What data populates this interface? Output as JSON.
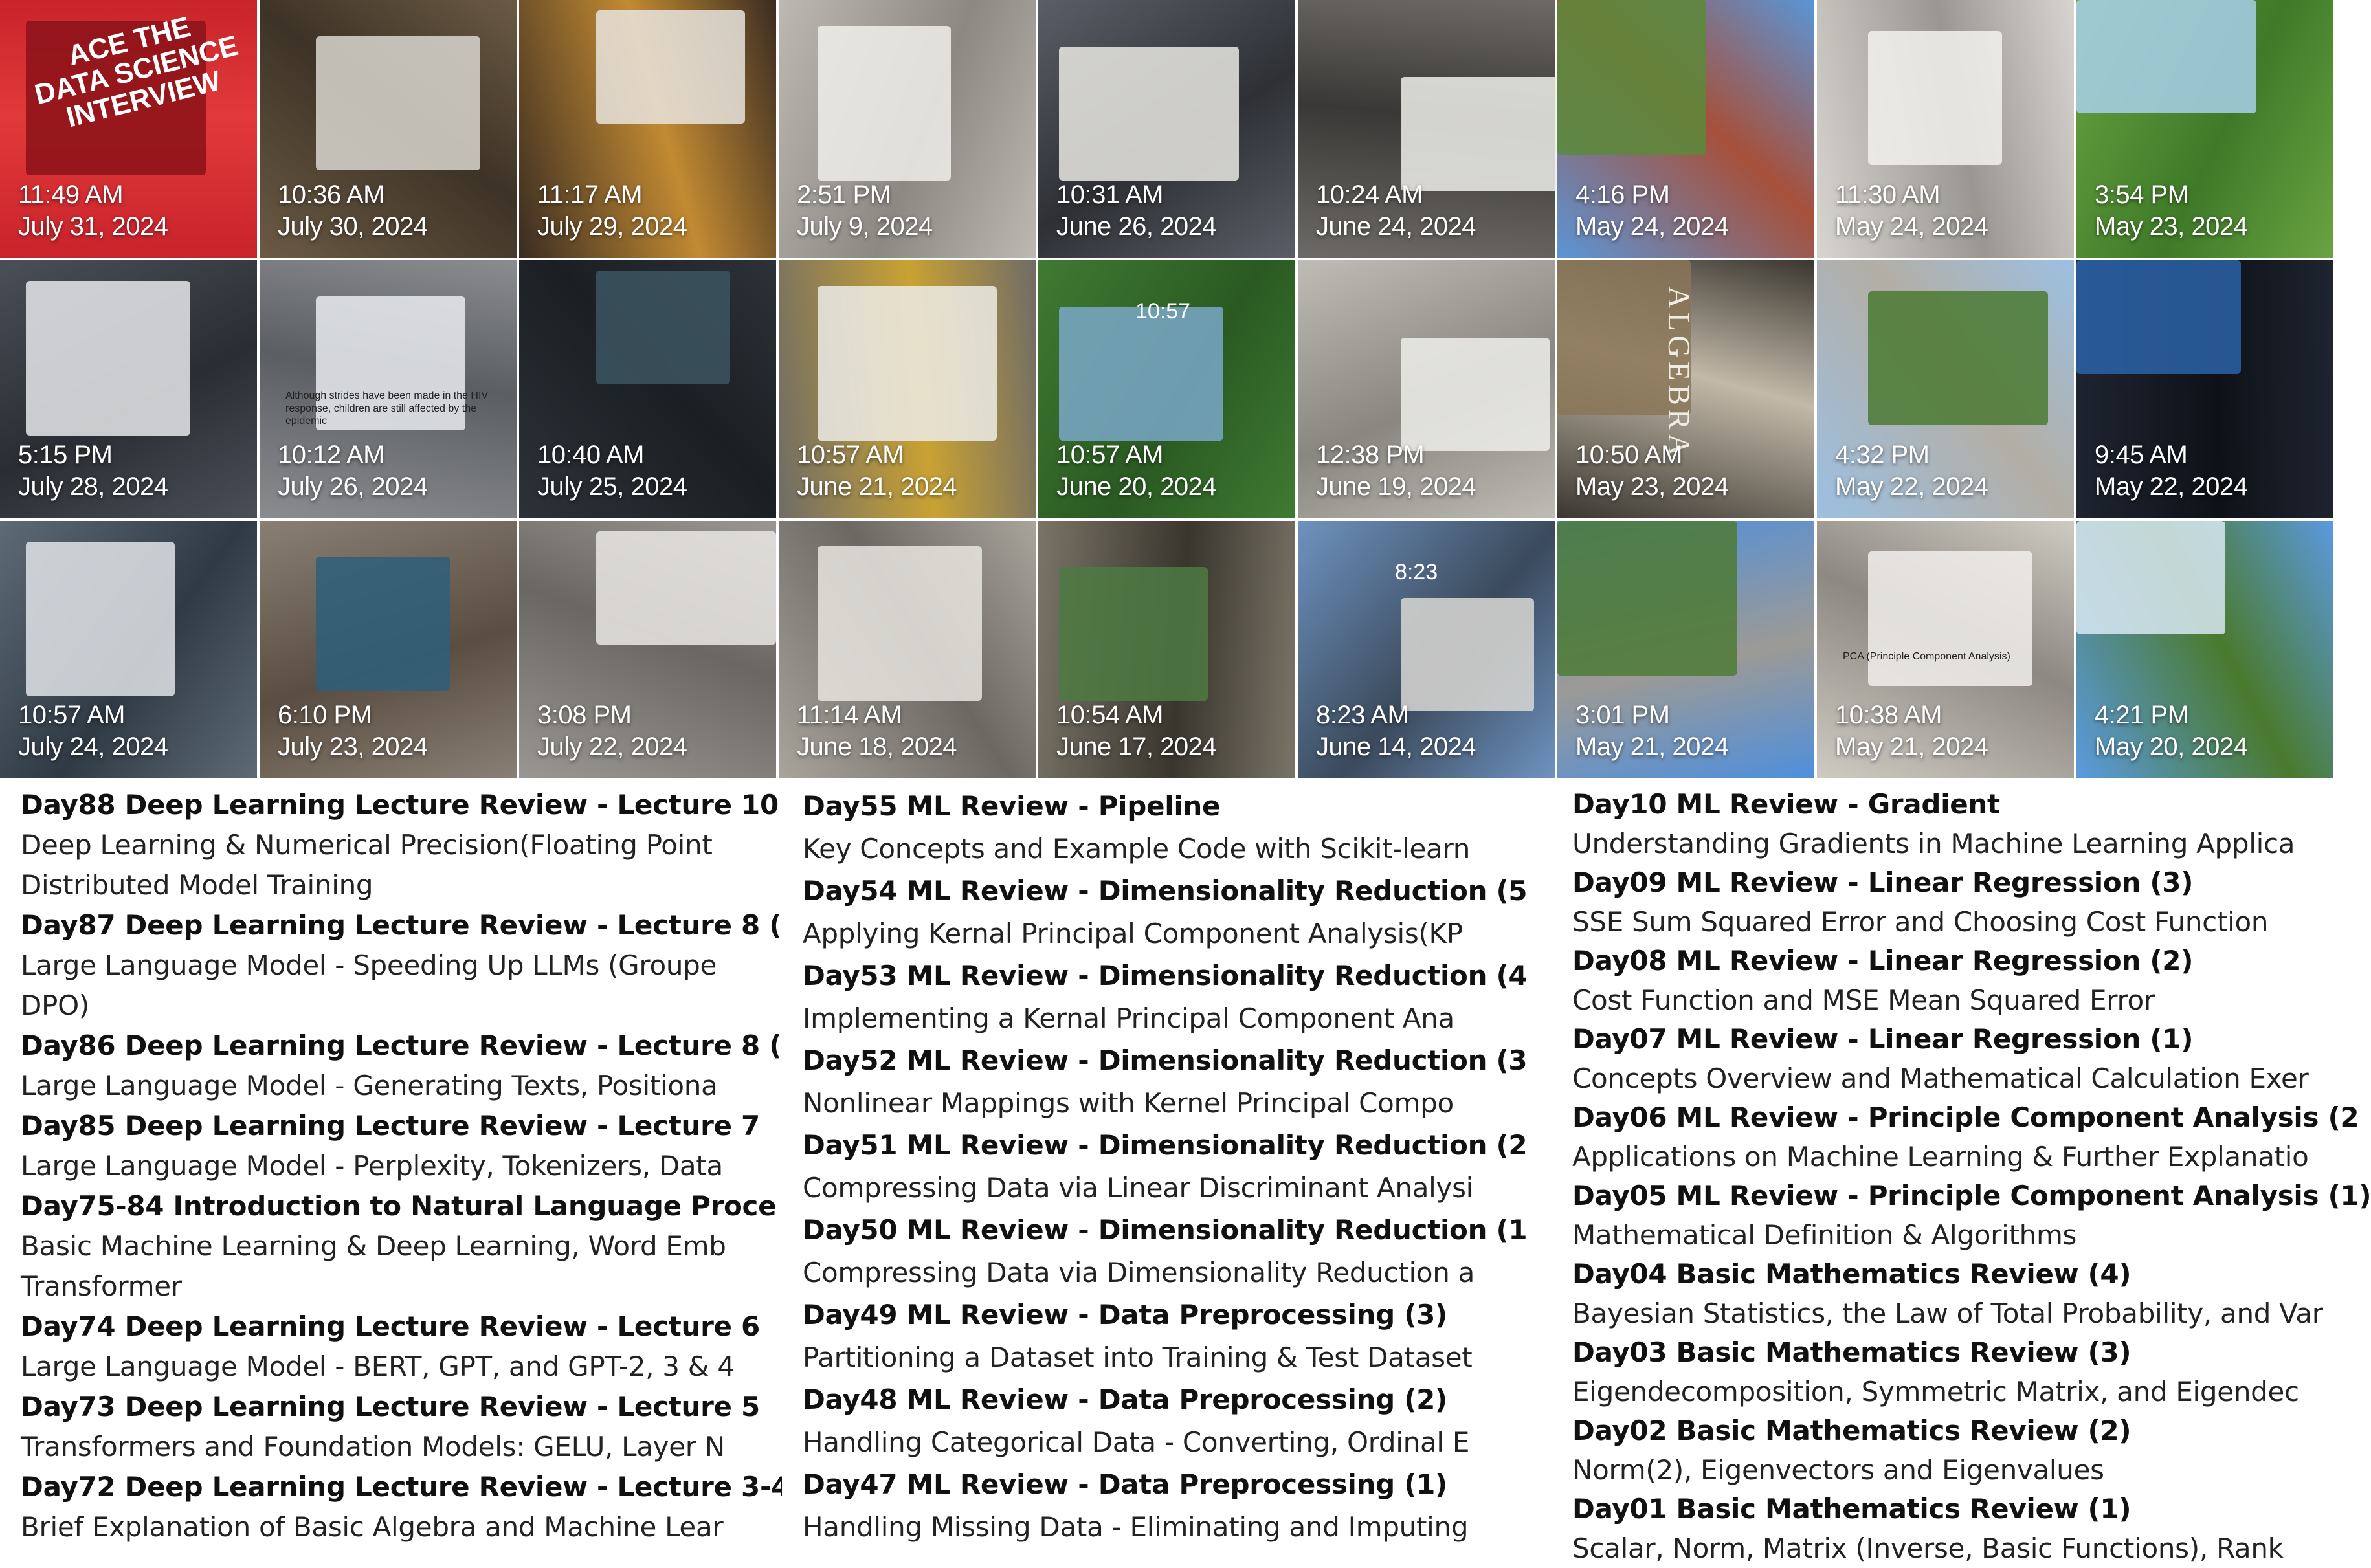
{
  "photos": [
    {
      "time": "11:49 AM",
      "date": "July 31, 2024",
      "book_lines": [
        "ACE THE",
        "DATA SCIENCE",
        "INTERVIEW"
      ],
      "palette": [
        "#c9232b",
        "#8a1218",
        "#e23a3a"
      ]
    },
    {
      "time": "10:36 AM",
      "date": "July 30, 2024",
      "palette": [
        "#6b5a44",
        "#d9d6cf",
        "#3d3326"
      ]
    },
    {
      "time": "11:17 AM",
      "date": "July 29, 2024",
      "palette": [
        "#3a2c22",
        "#e7e4de",
        "#c28a32"
      ]
    },
    {
      "time": "2:51 PM",
      "date": "July 9, 2024",
      "palette": [
        "#bdb9b2",
        "#f0eeea",
        "#8c8882"
      ]
    },
    {
      "time": "10:31 AM",
      "date": "June 26, 2024",
      "palette": [
        "#5a5e66",
        "#e9e8e3",
        "#2e3036"
      ]
    },
    {
      "time": "10:24 AM",
      "date": "June 24, 2024",
      "palette": [
        "#6d6a66",
        "#eeeeea",
        "#3a3836"
      ]
    },
    {
      "time": "4:16 PM",
      "date": "May 24, 2024",
      "palette": [
        "#5b95d6",
        "#5a8a3a",
        "#a7503a"
      ]
    },
    {
      "time": "11:30 AM",
      "date": "May 24, 2024",
      "palette": [
        "#d8d5d0",
        "#f2f1ee",
        "#9a9792"
      ]
    },
    {
      "time": "3:54 PM",
      "date": "May 23, 2024",
      "palette": [
        "#6aa342",
        "#a9d0ea",
        "#3e7a28"
      ]
    },
    {
      "time": "5:15 PM",
      "date": "July 28, 2024",
      "palette": [
        "#4a4f58",
        "#e6e7ea",
        "#2a2d33"
      ]
    },
    {
      "time": "10:12 AM",
      "date": "July 26, 2024",
      "screen_text": "Although strides have been made in the HIV response, children are still affected by the epidemic",
      "palette": [
        "#8a8c90",
        "#e9ebee",
        "#5b5e63"
      ]
    },
    {
      "time": "10:40 AM",
      "date": "July 25, 2024",
      "palette": [
        "#2c3238",
        "#3c5560",
        "#1b1f24"
      ]
    },
    {
      "time": "10:57 AM",
      "date": "June 21, 2024",
      "palette": [
        "#6f6c66",
        "#ecebe6",
        "#c9a233"
      ]
    },
    {
      "time": "10:57 AM",
      "date": "June 20, 2024",
      "screen_time": "10:57",
      "palette": [
        "#3f7a32",
        "#7aa8c8",
        "#2a5a22"
      ]
    },
    {
      "time": "12:38 PM",
      "date": "June 19, 2024",
      "palette": [
        "#bfbcb6",
        "#efeee9",
        "#8a8781"
      ]
    },
    {
      "time": "10:50 AM",
      "date": "May 23, 2024",
      "book_spine": "ALGEBRA",
      "palette": [
        "#3a3630",
        "#8a7658",
        "#c3b9a8"
      ]
    },
    {
      "time": "4:32 PM",
      "date": "May 22, 2024",
      "palette": [
        "#9cc0e2",
        "#4b7a33",
        "#b3aea5"
      ]
    },
    {
      "time": "9:45 AM",
      "date": "May 22, 2024",
      "palette": [
        "#1e2430",
        "#2b63a8",
        "#0e1218"
      ]
    },
    {
      "time": "10:57 AM",
      "date": "July 24, 2024",
      "palette": [
        "#5e6a74",
        "#dfe4e8",
        "#2f3a44"
      ]
    },
    {
      "time": "6:10 PM",
      "date": "July 23, 2024",
      "palette": [
        "#8a7f74",
        "#2d5f7a",
        "#5a4e42"
      ]
    },
    {
      "time": "3:08 PM",
      "date": "July 22, 2024",
      "palette": [
        "#9a9792",
        "#eae8e4",
        "#6a6762"
      ]
    },
    {
      "time": "11:14 AM",
      "date": "June 18, 2024",
      "palette": [
        "#a9a59d",
        "#e7e5df",
        "#6c6862"
      ]
    },
    {
      "time": "10:54 AM",
      "date": "June 17, 2024",
      "palette": [
        "#7a7468",
        "#4d7a42",
        "#3a352d"
      ]
    },
    {
      "time": "8:23 AM",
      "date": "June 14, 2024",
      "screen_time": "8:23",
      "palette": [
        "#6e93c0",
        "#d9d8d4",
        "#3b4a5c"
      ]
    },
    {
      "time": "3:01 PM",
      "date": "May 21, 2024",
      "palette": [
        "#4f8fdc",
        "#4d7a35",
        "#9c9a96"
      ]
    },
    {
      "time": "10:38 AM",
      "date": "May 21, 2024",
      "screen_text": "PCA (Principle Component Analysis)",
      "palette": [
        "#cfcac2",
        "#f1efeb",
        "#8d8982"
      ]
    },
    {
      "time": "4:21 PM",
      "date": "May 20, 2024",
      "palette": [
        "#5b9ae0",
        "#d8e7f3",
        "#4a7a2e"
      ]
    }
  ],
  "columns": [
    {
      "entries": [
        {
          "title": "Day88 Deep Learning Lecture Review - Lecture 10",
          "desc": [
            "Deep Learning & Numerical Precision(Floating Point",
            "Distributed Model Training"
          ]
        },
        {
          "title": "Day87 Deep Learning Lecture Review - Lecture 8 (",
          "desc": [
            "Large Language Model - Speeding Up LLMs (Groupe",
            "DPO)"
          ]
        },
        {
          "title": "Day86 Deep Learning Lecture Review - Lecture 8 (",
          "desc": [
            "Large Language Model - Generating Texts, Positiona"
          ]
        },
        {
          "title": "Day85 Deep Learning Lecture Review - Lecture 7",
          "desc": [
            "Large Language Model - Perplexity, Tokenizers, Data"
          ]
        },
        {
          "title": "Day75-84 Introduction to Natural Language Proce",
          "desc": [
            "Basic Machine Learning & Deep Learning, Word Emb",
            "Transformer"
          ]
        },
        {
          "title": "Day74 Deep Learning Lecture Review - Lecture 6",
          "desc": [
            "Large Language Model - BERT, GPT, and GPT-2, 3 & 4"
          ]
        },
        {
          "title": "Day73 Deep Learning Lecture Review - Lecture 5",
          "desc": [
            "Transformers and Foundation Models: GELU, Layer N"
          ]
        },
        {
          "title": "Day72 Deep Learning Lecture Review - Lecture 3-4",
          "desc": [
            "Brief Explanation of Basic Algebra and Machine Lear"
          ]
        }
      ]
    },
    {
      "entries": [
        {
          "title": "Day55 ML Review - Pipeline",
          "desc": [
            "Key Concepts and Example Code with Scikit-learn"
          ]
        },
        {
          "title": "Day54 ML Review - Dimensionality Reduction (5",
          "desc": [
            "Applying Kernal Principal Component Analysis(KP"
          ]
        },
        {
          "title": "Day53 ML Review - Dimensionality Reduction (4",
          "desc": [
            "Implementing a Kernal Principal Component Ana"
          ]
        },
        {
          "title": "Day52 ML Review - Dimensionality Reduction (3",
          "desc": [
            "Nonlinear Mappings with Kernel Principal Compo"
          ]
        },
        {
          "title": "Day51 ML Review - Dimensionality Reduction (2",
          "desc": [
            "Compressing Data via Linear Discriminant Analysi"
          ]
        },
        {
          "title": "Day50 ML Review - Dimensionality Reduction (1",
          "desc": [
            "Compressing Data via Dimensionality Reduction a"
          ]
        },
        {
          "title": "Day49 ML Review - Data Preprocessing (3)",
          "desc": [
            "Partitioning a Dataset into Training & Test Dataset"
          ]
        },
        {
          "title": "Day48 ML Review - Data Preprocessing (2)",
          "desc": [
            "Handling Categorical Data - Converting, Ordinal E"
          ]
        },
        {
          "title": "Day47 ML Review - Data Preprocessing (1)",
          "desc": [
            "Handling Missing Data - Eliminating and Imputing"
          ]
        }
      ]
    },
    {
      "entries": [
        {
          "title": "Day10 ML Review - Gradient",
          "desc": [
            "Understanding Gradients in Machine Learning Applica"
          ]
        },
        {
          "title": "Day09 ML Review - Linear Regression (3)",
          "desc": [
            "SSE Sum Squared Error and Choosing Cost Function"
          ]
        },
        {
          "title": "Day08 ML Review - Linear Regression (2)",
          "desc": [
            "Cost Function and MSE Mean Squared Error"
          ]
        },
        {
          "title": "Day07 ML Review - Linear Regression (1)",
          "desc": [
            "Concepts Overview and Mathematical Calculation Exer"
          ]
        },
        {
          "title": "Day06 ML Review - Principle Component Analysis (2",
          "desc": [
            "Applications on Machine Learning & Further Explanatio"
          ]
        },
        {
          "title": "Day05 ML Review - Principle Component Analysis (1)",
          "desc": [
            "Mathematical Definition & Algorithms"
          ]
        },
        {
          "title": "Day04 Basic Mathematics Review (4)",
          "desc": [
            "Bayesian Statistics, the Law of Total Probability, and Var"
          ]
        },
        {
          "title": "Day03 Basic Mathematics Review (3)",
          "desc": [
            "Eigendecomposition, Symmetric Matrix, and Eigendec"
          ]
        },
        {
          "title": "Day02 Basic Mathematics Review (2)",
          "desc": [
            "Norm(2), Eigenvectors and Eigenvalues"
          ]
        },
        {
          "title": "Day01 Basic Mathematics Review (1)",
          "desc": [
            "Scalar, Norm, Matrix (Inverse, Basic Functions), Rank"
          ]
        }
      ]
    }
  ]
}
